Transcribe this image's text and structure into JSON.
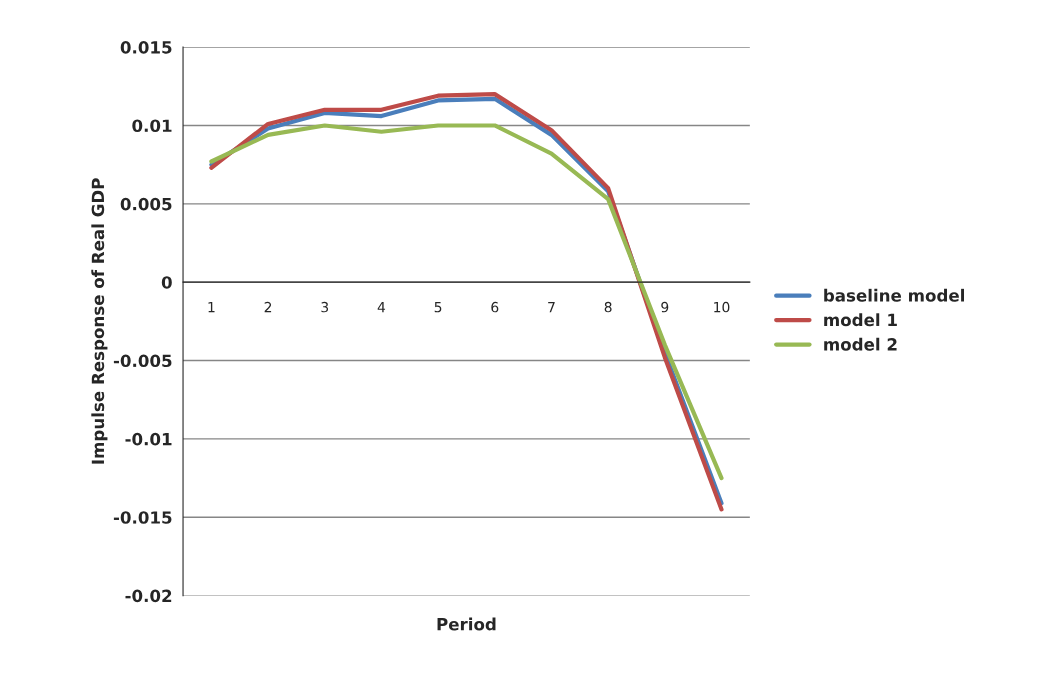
{
  "chart_data": {
    "type": "line",
    "xlabel": "Period",
    "ylabel": "Impulse Response of Real GDP",
    "categories": [
      "1",
      "2",
      "3",
      "4",
      "5",
      "6",
      "7",
      "8",
      "9",
      "10"
    ],
    "series": [
      {
        "name": "baseline model",
        "color": "#4a7ebb",
        "values": [
          0.0075,
          0.0098,
          0.0108,
          0.0106,
          0.0116,
          0.0117,
          0.0094,
          0.0058,
          -0.0045,
          -0.0141
        ]
      },
      {
        "name": "model 1",
        "color": "#be4b48",
        "values": [
          0.0073,
          0.0101,
          0.011,
          0.011,
          0.0119,
          0.012,
          0.0097,
          0.006,
          -0.0048,
          -0.0145
        ]
      },
      {
        "name": "model 2",
        "color": "#98b954",
        "values": [
          0.0077,
          0.0094,
          0.01,
          0.0096,
          0.01,
          0.01,
          0.0082,
          0.0053,
          -0.004,
          -0.0125
        ]
      }
    ],
    "ylim": [
      -0.02,
      0.015
    ],
    "yticks": [
      -0.02,
      -0.015,
      -0.01,
      -0.005,
      0,
      0.005,
      0.01,
      0.015
    ],
    "grid": "y",
    "legend": "right",
    "marker": "none",
    "line_style": "solid"
  }
}
